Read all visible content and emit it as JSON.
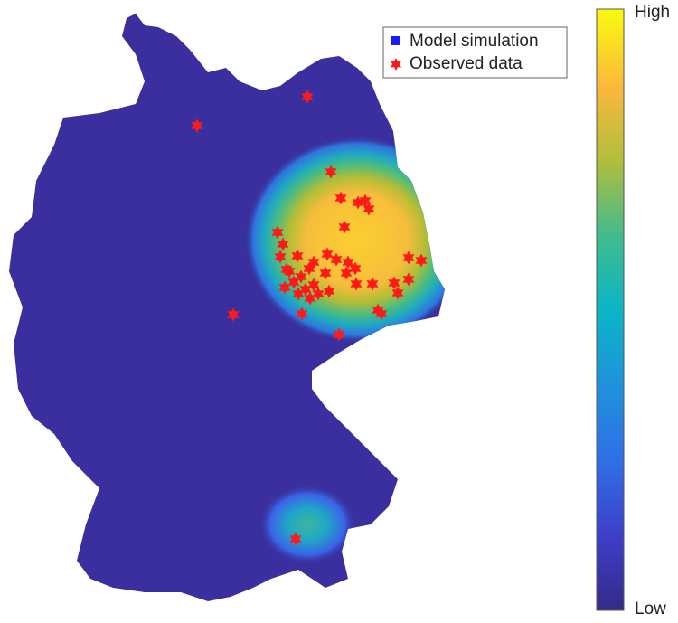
{
  "legend": {
    "entries": [
      "Model simulation",
      "Observed data"
    ]
  },
  "colorbar": {
    "top_label": "High",
    "bottom_label": "Low"
  }
}
